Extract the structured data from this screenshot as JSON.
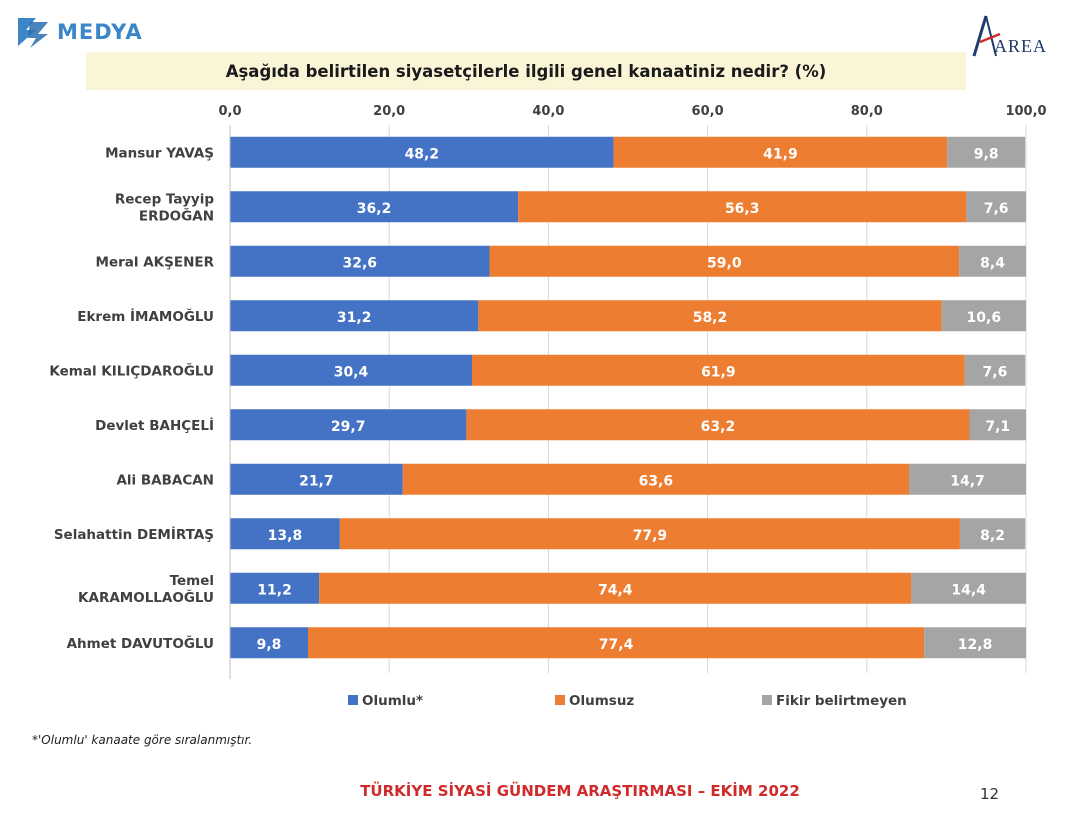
{
  "header": {
    "left_logo_text": "MEDYA",
    "right_logo_text": "AREA",
    "title": "Aşağıda belirtilen siyasetçilerle ilgili genel kanaatiniz nedir? (%)"
  },
  "colors": {
    "olumlu": "#4472c4",
    "olumsuz": "#ed7d31",
    "fikir": "#a5a5a5"
  },
  "chart_data": {
    "type": "bar",
    "orientation": "horizontal",
    "stacked": true,
    "title": "Aşağıda belirtilen siyasetçilerle ilgili genel kanaatiniz nedir? (%)",
    "xlim": [
      0,
      100
    ],
    "x_ticks": [
      "0,0",
      "20,0",
      "40,0",
      "60,0",
      "80,0",
      "100,0"
    ],
    "x_tick_values": [
      0,
      20,
      40,
      60,
      80,
      100
    ],
    "grid": true,
    "legend_position": "bottom",
    "categories": [
      [
        "Mansur YAVAŞ"
      ],
      [
        "Recep Tayyip",
        "ERDOĞAN"
      ],
      [
        "Meral AKŞENER"
      ],
      [
        "Ekrem İMAMOĞLU"
      ],
      [
        "Kemal KILIÇDAROĞLU"
      ],
      [
        "Devlet BAHÇELİ"
      ],
      [
        "Ali BABACAN"
      ],
      [
        "Selahattin DEMİRTAŞ"
      ],
      [
        "Temel",
        "KARAMOLLAOĞLU"
      ],
      [
        "Ahmet DAVUTOĞLU"
      ]
    ],
    "series": [
      {
        "name": "Olumlu*",
        "color": "#4472c4",
        "values": [
          48.2,
          36.2,
          32.6,
          31.2,
          30.4,
          29.7,
          21.7,
          13.8,
          11.2,
          9.8
        ],
        "labels": [
          "48,2",
          "36,2",
          "32,6",
          "31,2",
          "30,4",
          "29,7",
          "21,7",
          "13,8",
          "11,2",
          "9,8"
        ]
      },
      {
        "name": "Olumsuz",
        "color": "#ed7d31",
        "values": [
          41.9,
          56.3,
          59.0,
          58.2,
          61.9,
          63.2,
          63.6,
          77.9,
          74.4,
          77.4
        ],
        "labels": [
          "41,9",
          "56,3",
          "59,0",
          "58,2",
          "61,9",
          "63,2",
          "63,6",
          "77,9",
          "74,4",
          "77,4"
        ]
      },
      {
        "name": "Fikir belirtmeyen",
        "color": "#a5a5a5",
        "values": [
          9.8,
          7.6,
          8.4,
          10.6,
          7.6,
          7.1,
          14.7,
          8.2,
          14.4,
          12.8
        ],
        "labels": [
          "9,8",
          "7,6",
          "8,4",
          "10,6",
          "7,6",
          "7,1",
          "14,7",
          "8,2",
          "14,4",
          "12,8"
        ]
      }
    ]
  },
  "footnote": "*'Olumlu' kanaate göre sıralanmıştır.",
  "footer": "TÜRKİYE SİYASİ GÜNDEM ARAŞTIRMASI – EKİM 2022",
  "page_number": "12"
}
